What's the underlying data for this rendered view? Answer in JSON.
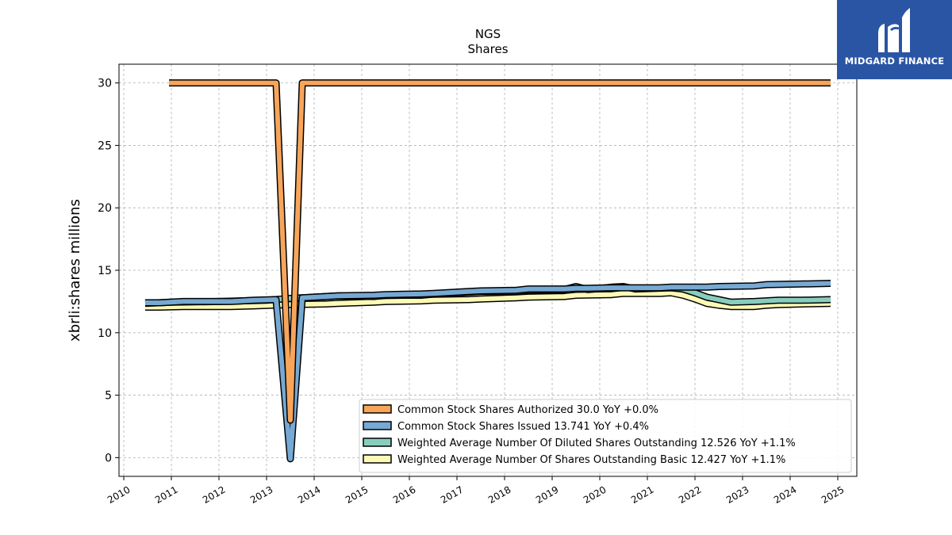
{
  "chart_data": {
    "type": "line",
    "title": "NGS",
    "subtitle": "Shares",
    "ylabel": "xbrli:shares millions",
    "xlabel": "",
    "xlim": [
      2009.9,
      2025.4
    ],
    "ylim": [
      -1.5,
      31.5
    ],
    "x_ticks": [
      "2010",
      "2011",
      "2012",
      "2013",
      "2014",
      "2015",
      "2016",
      "2017",
      "2018",
      "2019",
      "2020",
      "2021",
      "2022",
      "2023",
      "2024",
      "2025"
    ],
    "y_ticks": [
      "0",
      "5",
      "10",
      "15",
      "20",
      "25",
      "30"
    ],
    "grid": true,
    "legend_position": "bottom-right",
    "series": [
      {
        "name": "Common Stock Shares Authorized",
        "legend": "Common Stock Shares Authorized  30.0 YoY +0.0%",
        "color": "#f7a55a",
        "x": [
          2010.95,
          2013.2,
          2013.5,
          2013.75,
          2024.85
        ],
        "y": [
          30.0,
          30.0,
          3.0,
          30.0,
          30.0
        ]
      },
      {
        "name": "Common Stock Shares Issued",
        "legend": "Common Stock Shares Issued  13.741 YoY +0.4%",
        "color": "#76a9d3",
        "x": [
          2010.45,
          2010.75,
          2011.25,
          2012.25,
          2012.75,
          2013.2,
          2013.5,
          2013.75,
          2014.25,
          2014.5,
          2015.25,
          2015.5,
          2016.25,
          2016.5,
          2017.25,
          2017.5,
          2018.25,
          2018.5,
          2019.25,
          2019.5,
          2019.75,
          2020.25,
          2020.5,
          2021.25,
          2021.5,
          2022.25,
          2022.5,
          2023.25,
          2023.5,
          2024.25,
          2024.85
        ],
        "y": [
          12.4,
          12.4,
          12.5,
          12.5,
          12.6,
          12.65,
          -0.1,
          12.8,
          12.9,
          12.95,
          13.0,
          13.05,
          13.1,
          13.15,
          13.3,
          13.35,
          13.4,
          13.5,
          13.5,
          13.55,
          13.55,
          13.6,
          13.6,
          13.6,
          13.65,
          13.65,
          13.7,
          13.75,
          13.85,
          13.9,
          13.95
        ]
      },
      {
        "name": "Weighted Average Number Of Diluted Shares Outstanding",
        "legend": "Weighted Average Number Of Diluted Shares Outstanding  12.526 YoY +1.1%",
        "color": "#88cdbd",
        "x": [
          2010.45,
          2011.0,
          2012.0,
          2013.0,
          2013.5,
          2014.5,
          2015.25,
          2015.5,
          2016.25,
          2016.5,
          2017.25,
          2017.5,
          2018.25,
          2018.5,
          2019.25,
          2019.5,
          2019.75,
          2020.25,
          2020.5,
          2020.75,
          2021.5,
          2021.75,
          2022.0,
          2022.25,
          2022.75,
          2023.25,
          2023.75,
          2024.25,
          2024.85
        ],
        "y": [
          12.35,
          12.45,
          12.5,
          12.6,
          12.75,
          12.95,
          12.9,
          13.0,
          13.0,
          13.1,
          13.25,
          13.3,
          13.3,
          13.4,
          13.45,
          13.7,
          13.45,
          13.65,
          13.7,
          13.5,
          13.6,
          13.5,
          13.2,
          12.85,
          12.45,
          12.5,
          12.6,
          12.6,
          12.65
        ]
      },
      {
        "name": "Weighted Average Number Of Shares Outstanding Basic",
        "legend": "Weighted Average Number Of Shares Outstanding Basic  12.427 YoY +1.1%",
        "color": "#fdf9b6",
        "x": [
          2010.45,
          2010.75,
          2011.25,
          2012.25,
          2012.75,
          2013.5,
          2014.25,
          2014.5,
          2015.25,
          2015.5,
          2016.25,
          2016.5,
          2017.25,
          2017.5,
          2018.25,
          2018.5,
          2019.25,
          2019.5,
          2020.25,
          2020.5,
          2021.25,
          2021.5,
          2021.75,
          2022.0,
          2022.25,
          2022.5,
          2022.75,
          2023.25,
          2023.5,
          2023.75,
          2024.25,
          2024.85
        ],
        "y": [
          12.05,
          12.05,
          12.1,
          12.1,
          12.15,
          12.25,
          12.3,
          12.35,
          12.45,
          12.5,
          12.55,
          12.6,
          12.65,
          12.7,
          12.8,
          12.85,
          12.9,
          13.0,
          13.05,
          13.15,
          13.15,
          13.2,
          13.0,
          12.7,
          12.35,
          12.2,
          12.1,
          12.1,
          12.2,
          12.25,
          12.3,
          12.35
        ]
      }
    ]
  },
  "logo": {
    "text": "MIDGARD FINANCE",
    "icon": "midgard-logo-icon",
    "background": "#2a55a5"
  }
}
